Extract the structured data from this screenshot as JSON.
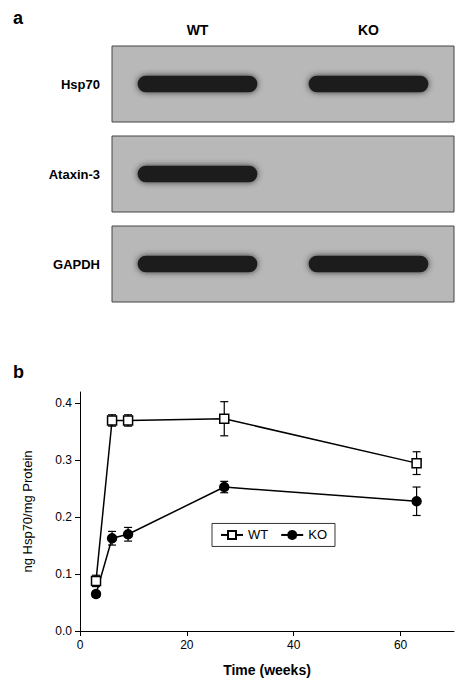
{
  "chart_data": [
    {
      "type": "blot",
      "title": "a",
      "categories": [
        "WT",
        "KO"
      ],
      "color": "#b8b8b8",
      "rows": [
        {
          "name": "Hsp70",
          "bands": [
            "WT",
            "KO"
          ]
        },
        {
          "name": "Ataxin-3",
          "bands": [
            "WT"
          ]
        },
        {
          "name": "GAPDH",
          "bands": [
            "WT",
            "KO"
          ]
        }
      ]
    },
    {
      "type": "line",
      "title": "b",
      "xlabel": "Time (weeks)",
      "ylabel": "ng Hsp70/mg Protein",
      "series": [
        {
          "name": "WT",
          "color": "#000000",
          "marker": "open_square",
          "x": [
            3,
            6,
            9,
            27,
            63
          ],
          "values": [
            0.088,
            0.37,
            0.37,
            0.373,
            0.295
          ],
          "errors": [
            0.01,
            0.01,
            0.01,
            0.03,
            0.02
          ]
        },
        {
          "name": "KO",
          "color": "#000000",
          "marker": "filled_circle",
          "x": [
            3,
            6,
            9,
            27,
            63
          ],
          "values": [
            0.065,
            0.163,
            0.17,
            0.253,
            0.228
          ],
          "errors": [
            0.005,
            0.012,
            0.012,
            0.01,
            0.025
          ]
        }
      ],
      "xlim": [
        0,
        70
      ],
      "xticks": [
        0,
        20,
        40,
        60
      ],
      "ylim": [
        0.0,
        0.42
      ],
      "yticks": [
        {
          "value": 0.0,
          "label": "0.0"
        },
        0.1,
        0.2,
        0.3,
        0.4
      ],
      "grid": false,
      "legend": "center"
    }
  ]
}
